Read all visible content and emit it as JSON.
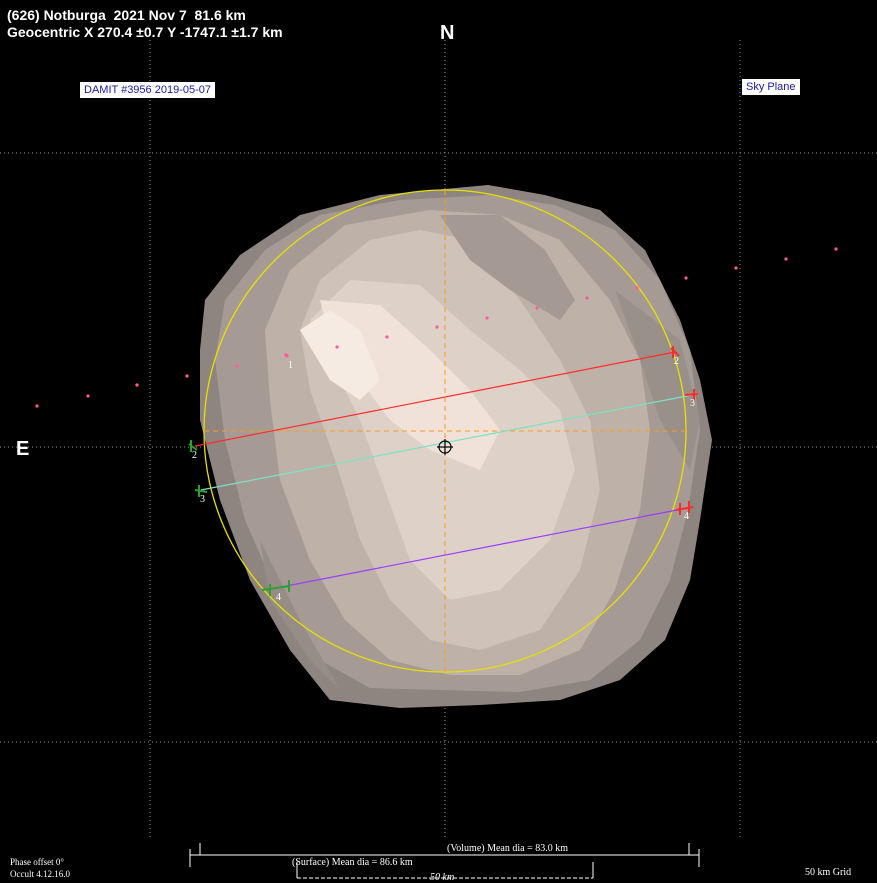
{
  "header": {
    "line1": "(626) Notburga  2021 Nov 7  81.6 km",
    "line2": "Geocentric X 270.4 ±0.7 Y -1747.1 ±1.7 km"
  },
  "compass": {
    "north": "N",
    "east": "E"
  },
  "model_label": "DAMIT #3956 2019-05-07",
  "view_label": "Sky Plane",
  "chords": [
    {
      "id": "2",
      "color": "#ff2a2a"
    },
    {
      "id": "3",
      "color": "#7fe0c8"
    },
    {
      "id": "4",
      "color": "#9b3cff"
    }
  ],
  "chord_labels": {
    "c1": "1",
    "c2a": "2",
    "c2b": "2",
    "c3a": "3",
    "c3b": "3",
    "c4a": "4",
    "c4b": "4"
  },
  "scale": {
    "volume": "(Volume) Mean dia = 83.0 km",
    "surface": "(Surface) Mean dia = 86.6 km",
    "km": "50 km"
  },
  "footer": {
    "phase": "Phase offset 0°",
    "version": "Occult 4.12.16.0",
    "grid": "50 km Grid"
  },
  "colors": {
    "fit_ellipse": "#e8e000",
    "axis": "#ff9a1a",
    "grid": "#cfcfcf",
    "track": "#ff5aa0"
  }
}
